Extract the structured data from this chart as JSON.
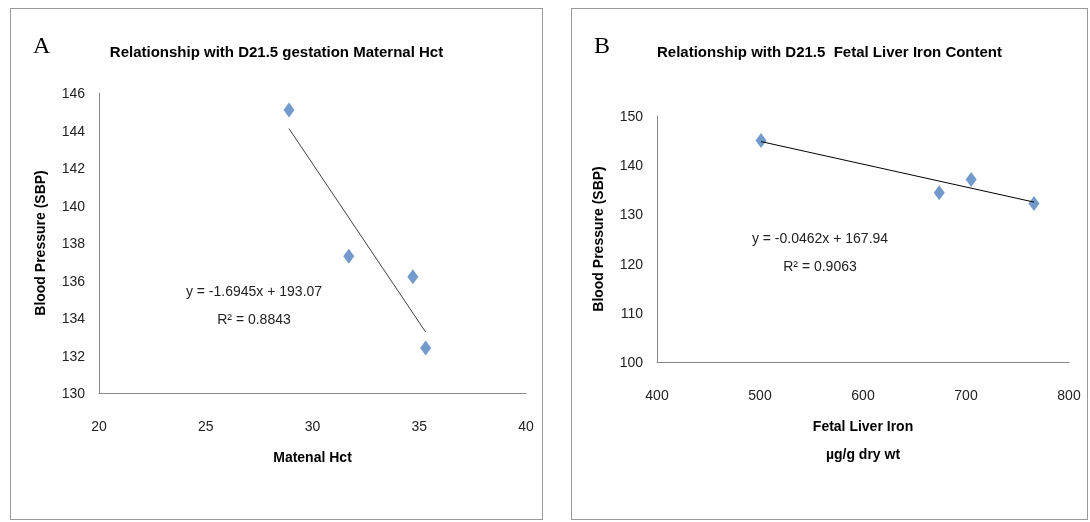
{
  "chart_data": [
    {
      "type": "scatter",
      "title": "Relationship with D21.5 gestation Maternal Hct",
      "xlabel": "Matenal Hct",
      "ylabel": "Blood Pressure (SBP)",
      "annotations": [
        "A",
        "y = -1.6945x + 193.07",
        "R² = 0.8843"
      ],
      "x": [
        28.9,
        31.7,
        34.7,
        35.3
      ],
      "series": [
        {
          "type": "scatter",
          "color": "#4f81bd",
          "values": [
            145.1,
            137.3,
            136.2,
            132.4
          ]
        },
        {
          "type": "line",
          "color": "#404040",
          "x": [
            28.9,
            35.3
          ],
          "values": [
            144.1,
            133.25
          ],
          "marker": "none"
        }
      ],
      "xlim": [
        20,
        40
      ],
      "xticks": [
        20,
        25,
        30,
        35,
        40
      ],
      "ylim": [
        130,
        146
      ],
      "yticks": [
        130,
        132,
        134,
        136,
        138,
        140,
        142,
        144,
        146
      ],
      "grid": false,
      "marker": "diamond"
    },
    {
      "type": "scatter",
      "title": "Relationship with D21.5  Fetal Liver Iron Content",
      "xlabel": "Fetal Liver Iron\nµg/g dry wt",
      "ylabel": "Blood Pressure (SBP)",
      "annotations": [
        "B",
        "y = -0.0462x + 167.94",
        "R² = 0.9063"
      ],
      "x": [
        501,
        674,
        705,
        766
      ],
      "series": [
        {
          "type": "scatter",
          "color": "#4f81bd",
          "values": [
            145.0,
            134.4,
            137.1,
            132.2
          ]
        },
        {
          "type": "line",
          "color": "#000000",
          "x": [
            501,
            766
          ],
          "values": [
            144.8,
            132.5
          ],
          "marker": "none"
        }
      ],
      "xlim": [
        400,
        800
      ],
      "xticks": [
        400,
        500,
        600,
        700,
        800
      ],
      "ylim": [
        100,
        150
      ],
      "yticks": [
        100,
        110,
        120,
        130,
        140,
        150
      ],
      "grid": false,
      "marker": "diamond"
    }
  ]
}
